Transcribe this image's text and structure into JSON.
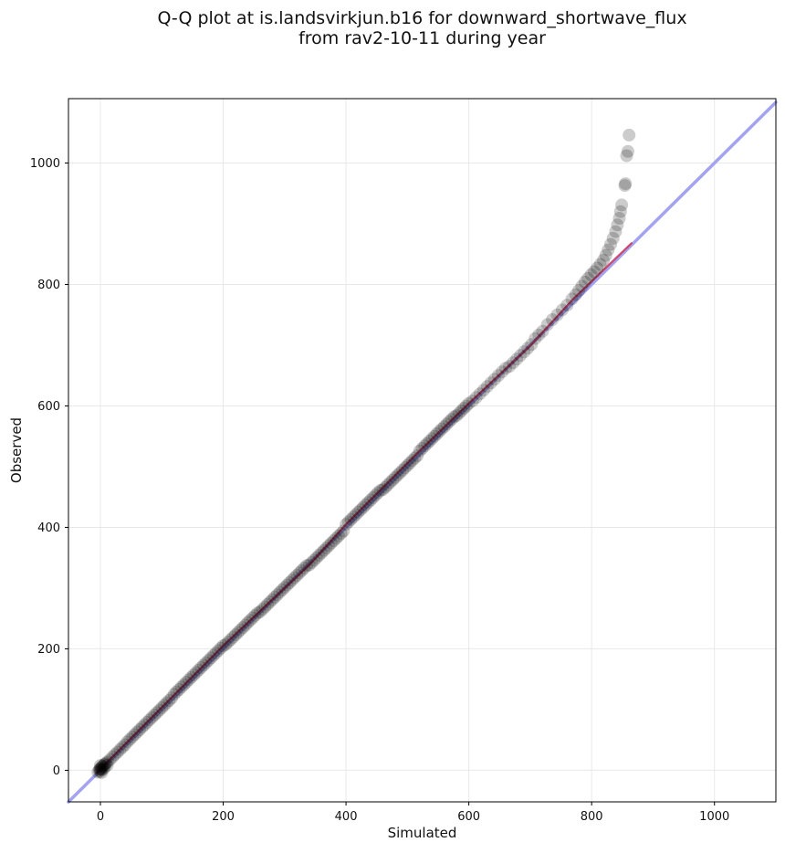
{
  "title": {
    "line1": "Q-Q plot at is.landsvirkjun.b16 for downward_shortwave_flux",
    "line2": "from rav2-10-11 during year"
  },
  "chart_data": {
    "type": "scatter",
    "title": "Q-Q plot at is.landsvirkjun.b16 for downward_shortwave_flux from rav2-10-11 during year",
    "xlabel": "Simulated",
    "ylabel": "Observed",
    "xlim": [
      -52,
      1100
    ],
    "ylim": [
      -52,
      1106
    ],
    "xticks": [
      0,
      200,
      400,
      600,
      800,
      1000
    ],
    "yticks": [
      0,
      200,
      400,
      600,
      800,
      1000
    ],
    "grid": true,
    "grid_color": "#e8e8e8",
    "spine_color": "#000000",
    "tick_label_color": "#111111",
    "background": "#ffffff",
    "legend": "none",
    "series": [
      {
        "name": "identity-line",
        "type": "line",
        "color": "#a3a3ef",
        "width": 3.5,
        "opacity": 1,
        "points": [
          [
            -52,
            -52
          ],
          [
            1100,
            1100
          ]
        ]
      },
      {
        "name": "qq-fit-line",
        "type": "line",
        "color": "#cd3a5e",
        "width": 2.2,
        "opacity": 0.9,
        "points": [
          [
            -6,
            -4
          ],
          [
            200,
            205
          ],
          [
            340,
            338
          ],
          [
            400,
            405
          ],
          [
            520,
            526
          ],
          [
            600,
            604
          ],
          [
            700,
            699
          ],
          [
            770,
            776
          ],
          [
            865,
            868
          ]
        ]
      },
      {
        "name": "quantile-points",
        "type": "scatter",
        "marker_color": "#000000",
        "marker_opacity": 0.2,
        "marker_radius": 7,
        "points": [
          [
            -4,
            -3
          ],
          [
            -2,
            0
          ],
          [
            0,
            -2
          ],
          [
            1,
            4
          ],
          [
            2,
            1
          ],
          [
            3,
            7
          ],
          [
            5,
            2
          ],
          [
            6,
            9
          ],
          [
            -1,
            2
          ],
          [
            2,
            -4
          ],
          [
            0,
            8
          ],
          [
            7,
            5
          ],
          [
            9,
            12
          ],
          [
            11,
            8
          ],
          [
            0,
            2
          ],
          [
            4,
            6
          ],
          [
            8,
            10
          ],
          [
            12,
            14
          ],
          [
            16,
            18
          ],
          [
            20,
            22
          ],
          [
            24,
            26
          ],
          [
            28,
            30
          ],
          [
            32,
            34
          ],
          [
            36,
            38
          ],
          [
            40,
            42
          ],
          [
            44,
            47
          ],
          [
            48,
            51
          ],
          [
            52,
            55
          ],
          [
            56,
            59
          ],
          [
            60,
            63
          ],
          [
            64,
            67
          ],
          [
            68,
            71
          ],
          [
            72,
            75
          ],
          [
            76,
            79
          ],
          [
            80,
            83
          ],
          [
            84,
            87
          ],
          [
            88,
            91
          ],
          [
            92,
            95
          ],
          [
            96,
            99
          ],
          [
            100,
            103
          ],
          [
            104,
            107
          ],
          [
            108,
            111
          ],
          [
            112,
            115
          ],
          [
            116,
            119
          ],
          [
            120,
            125
          ],
          [
            124,
            129
          ],
          [
            128,
            133
          ],
          [
            132,
            137
          ],
          [
            136,
            141
          ],
          [
            140,
            145
          ],
          [
            144,
            149
          ],
          [
            148,
            153
          ],
          [
            152,
            157
          ],
          [
            156,
            161
          ],
          [
            160,
            165
          ],
          [
            164,
            169
          ],
          [
            168,
            173
          ],
          [
            172,
            177
          ],
          [
            176,
            181
          ],
          [
            180,
            185
          ],
          [
            184,
            189
          ],
          [
            188,
            193
          ],
          [
            192,
            197
          ],
          [
            196,
            201
          ],
          [
            200,
            205
          ],
          [
            204,
            207
          ],
          [
            208,
            211
          ],
          [
            212,
            215
          ],
          [
            216,
            219
          ],
          [
            220,
            223
          ],
          [
            224,
            227
          ],
          [
            228,
            231
          ],
          [
            232,
            235
          ],
          [
            236,
            239
          ],
          [
            240,
            243
          ],
          [
            244,
            247
          ],
          [
            248,
            251
          ],
          [
            252,
            255
          ],
          [
            256,
            259
          ],
          [
            260,
            261
          ],
          [
            264,
            265
          ],
          [
            268,
            269
          ],
          [
            272,
            273
          ],
          [
            276,
            277
          ],
          [
            280,
            281
          ],
          [
            284,
            285
          ],
          [
            288,
            289
          ],
          [
            292,
            293
          ],
          [
            296,
            297
          ],
          [
            300,
            301
          ],
          [
            304,
            305
          ],
          [
            308,
            309
          ],
          [
            312,
            313
          ],
          [
            316,
            317
          ],
          [
            320,
            321
          ],
          [
            324,
            325
          ],
          [
            328,
            329
          ],
          [
            332,
            333
          ],
          [
            336,
            337
          ],
          [
            340,
            338
          ],
          [
            344,
            342
          ],
          [
            348,
            346
          ],
          [
            352,
            350
          ],
          [
            356,
            354
          ],
          [
            360,
            358
          ],
          [
            364,
            362
          ],
          [
            368,
            366
          ],
          [
            372,
            370
          ],
          [
            376,
            374
          ],
          [
            380,
            378
          ],
          [
            384,
            382
          ],
          [
            388,
            386
          ],
          [
            392,
            390
          ],
          [
            396,
            394
          ],
          [
            400,
            405
          ],
          [
            404,
            409
          ],
          [
            408,
            413
          ],
          [
            412,
            417
          ],
          [
            416,
            421
          ],
          [
            420,
            425
          ],
          [
            424,
            429
          ],
          [
            428,
            433
          ],
          [
            432,
            437
          ],
          [
            436,
            441
          ],
          [
            440,
            445
          ],
          [
            444,
            449
          ],
          [
            448,
            453
          ],
          [
            452,
            457
          ],
          [
            456,
            461
          ],
          [
            460,
            462
          ],
          [
            464,
            466
          ],
          [
            468,
            470
          ],
          [
            472,
            474
          ],
          [
            476,
            478
          ],
          [
            480,
            482
          ],
          [
            484,
            486
          ],
          [
            488,
            490
          ],
          [
            492,
            494
          ],
          [
            496,
            498
          ],
          [
            500,
            502
          ],
          [
            504,
            506
          ],
          [
            508,
            510
          ],
          [
            512,
            514
          ],
          [
            516,
            518
          ],
          [
            520,
            526
          ],
          [
            524,
            530
          ],
          [
            528,
            534
          ],
          [
            532,
            538
          ],
          [
            536,
            542
          ],
          [
            540,
            546
          ],
          [
            544,
            550
          ],
          [
            548,
            554
          ],
          [
            552,
            558
          ],
          [
            556,
            562
          ],
          [
            560,
            566
          ],
          [
            564,
            570
          ],
          [
            568,
            574
          ],
          [
            572,
            578
          ],
          [
            576,
            582
          ],
          [
            580,
            584
          ],
          [
            584,
            588
          ],
          [
            588,
            592
          ],
          [
            592,
            596
          ],
          [
            596,
            600
          ],
          [
            600,
            604
          ],
          [
            606,
            608
          ],
          [
            612,
            614
          ],
          [
            618,
            620
          ],
          [
            624,
            626
          ],
          [
            630,
            632
          ],
          [
            636,
            638
          ],
          [
            642,
            644
          ],
          [
            648,
            650
          ],
          [
            654,
            656
          ],
          [
            660,
            662
          ],
          [
            666,
            665
          ],
          [
            672,
            671
          ],
          [
            678,
            677
          ],
          [
            684,
            683
          ],
          [
            690,
            689
          ],
          [
            696,
            695
          ],
          [
            702,
            701
          ],
          [
            708,
            711
          ],
          [
            714,
            717
          ],
          [
            720,
            723
          ],
          [
            728,
            734
          ],
          [
            736,
            742
          ],
          [
            744,
            750
          ],
          [
            752,
            758
          ],
          [
            760,
            766
          ],
          [
            768,
            776
          ],
          [
            774,
            783
          ],
          [
            779,
            790
          ],
          [
            784,
            797
          ],
          [
            789,
            804
          ],
          [
            794,
            810
          ],
          [
            799,
            816
          ],
          [
            804,
            821
          ],
          [
            809,
            827
          ],
          [
            814,
            833
          ],
          [
            819,
            840
          ],
          [
            823,
            848
          ],
          [
            827,
            857
          ],
          [
            831,
            866
          ],
          [
            835,
            876
          ],
          [
            839,
            887
          ],
          [
            842,
            898
          ],
          [
            845,
            909
          ],
          [
            847,
            920
          ],
          [
            849,
            931
          ],
          [
            854,
            963
          ],
          [
            855,
            966
          ],
          [
            857,
            1012
          ],
          [
            859,
            1019
          ],
          [
            861,
            1046
          ]
        ]
      }
    ]
  }
}
